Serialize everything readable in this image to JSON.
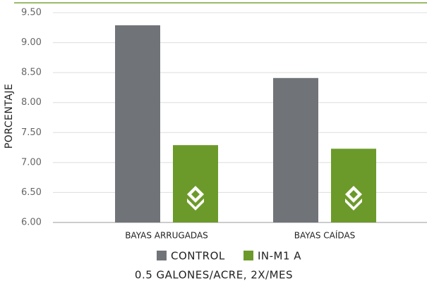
{
  "chart_data": {
    "type": "bar",
    "categories": [
      "BAYAS ARRUGADAS",
      "BAYAS CAÍDAS"
    ],
    "series": [
      {
        "name": "CONTROL",
        "color": "#707378",
        "values": [
          9.29,
          8.41
        ]
      },
      {
        "name": "IN-M1 A",
        "color": "#6c9a2a",
        "values": [
          7.29,
          7.23
        ]
      }
    ],
    "ylabel": "PORCENTAJE",
    "xlabel": "0.5 GALONES/ACRE, 2X/MES",
    "ylim": [
      6,
      9.5
    ],
    "yticks": [
      {
        "value": 6,
        "label": "6.00"
      },
      {
        "value": 6.5,
        "label": "6.50"
      },
      {
        "value": 7,
        "label": "7.00"
      },
      {
        "value": 7.5,
        "label": "7.50"
      },
      {
        "value": 8,
        "label": "8.00"
      },
      {
        "value": 8.5,
        "label": "8.50"
      },
      {
        "value": 9,
        "label": "9.00"
      },
      {
        "value": 9.5,
        "label": "9.50"
      }
    ],
    "grid": true,
    "legend": "bottom"
  }
}
